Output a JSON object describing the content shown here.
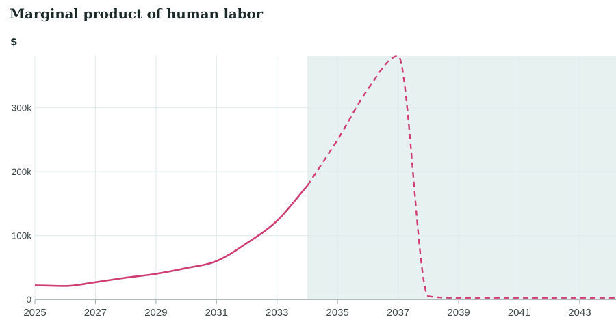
{
  "header": {
    "title": "Marginal product of human labor",
    "unit": "$"
  },
  "chart_data": {
    "type": "line",
    "title": "Marginal product of human labor",
    "xlabel": "",
    "ylabel": "$",
    "xlim": [
      2025,
      2044.2
    ],
    "ylim": [
      0,
      381000
    ],
    "x_ticks": [
      2025,
      2027,
      2029,
      2031,
      2033,
      2035,
      2037,
      2039,
      2041,
      2043
    ],
    "y_ticks": [
      {
        "value": 0,
        "label": "0"
      },
      {
        "value": 100000,
        "label": "100k"
      },
      {
        "value": 200000,
        "label": "200k"
      },
      {
        "value": 300000,
        "label": "300k"
      }
    ],
    "grid": true,
    "legend": false,
    "shaded_region": {
      "x_start": 2034,
      "x_end": 2044.2
    },
    "series": [
      {
        "name": "Marginal product of human labor (solid segment)",
        "style": "solid",
        "x": [
          2025,
          2026,
          2027,
          2028,
          2029,
          2030,
          2031,
          2032,
          2033,
          2034
        ],
        "y": [
          22000,
          21000,
          27000,
          34000,
          40000,
          49000,
          60000,
          88000,
          123000,
          178000
        ]
      },
      {
        "name": "Marginal product of human labor (dashed projection segment)",
        "style": "dashed",
        "x": [
          2034,
          2035,
          2036,
          2037,
          2038,
          2039,
          2040,
          2041,
          2042,
          2043,
          2044.2
        ],
        "y": [
          178000,
          250000,
          329000,
          381000,
          5000,
          2500,
          2500,
          2500,
          2500,
          2500,
          2500
        ]
      }
    ],
    "colors": {
      "line": "#cf3d73",
      "shade": "#e6f1f0",
      "grid": "#dfeaea",
      "axis": "#9aa3a3",
      "tick_label": "#3d4848",
      "title": "#1a2827",
      "background": "#ffffff"
    }
  }
}
